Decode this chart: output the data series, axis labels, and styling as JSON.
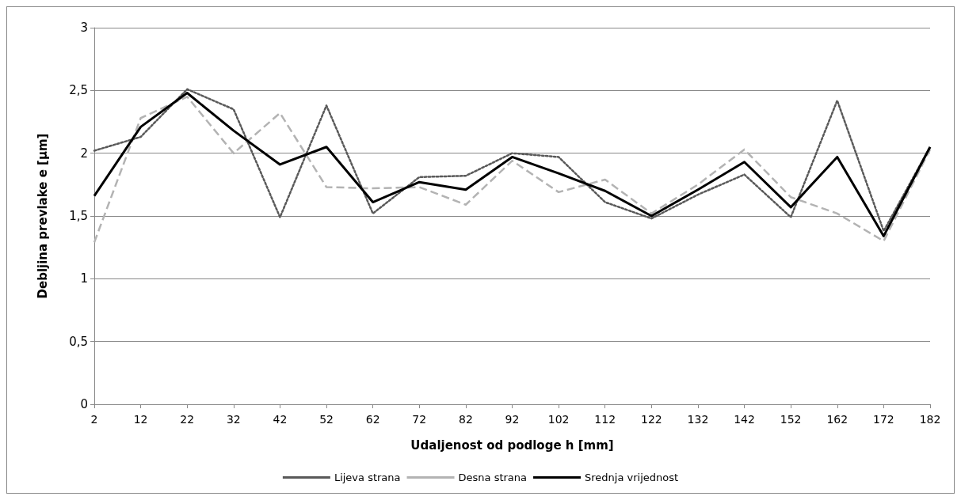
{
  "chart_data": {
    "type": "line",
    "xlabel": "Udaljenost od podloge h [mm]",
    "ylabel": "Debljina prevlake e [µm]",
    "categories": [
      "2",
      "12",
      "22",
      "32",
      "42",
      "52",
      "62",
      "72",
      "82",
      "92",
      "102",
      "112",
      "122",
      "132",
      "142",
      "152",
      "162",
      "172",
      "182"
    ],
    "series": [
      {
        "name": "Lijeva strana",
        "color": "#595959",
        "line_style": "dotted",
        "values": [
          2.02,
          2.13,
          2.51,
          2.35,
          1.49,
          2.38,
          1.52,
          1.81,
          1.82,
          2.0,
          1.97,
          1.61,
          1.48,
          1.67,
          1.83,
          1.49,
          2.42,
          1.38,
          2.05
        ]
      },
      {
        "name": "Desna strana",
        "color": "#b3b3b3",
        "line_style": "dashed",
        "values": [
          1.29,
          2.28,
          2.45,
          2.0,
          2.32,
          1.73,
          1.72,
          1.73,
          1.59,
          1.94,
          1.69,
          1.79,
          1.52,
          1.75,
          2.03,
          1.65,
          1.52,
          1.3,
          2.03
        ]
      },
      {
        "name": "Srednja vrijednost",
        "color": "#000000",
        "line_style": "solid",
        "values": [
          1.66,
          2.21,
          2.48,
          2.18,
          1.91,
          2.05,
          1.61,
          1.77,
          1.71,
          1.97,
          1.84,
          1.7,
          1.5,
          1.71,
          1.93,
          1.57,
          1.97,
          1.34,
          2.05
        ]
      }
    ],
    "ylim": [
      0,
      3
    ],
    "yticks": [
      0,
      {
        "value": 0.5,
        "label": "0,5"
      },
      1,
      {
        "value": 1.5,
        "label": "1,5"
      },
      2,
      {
        "value": 2.5,
        "label": "2,5"
      },
      3
    ],
    "grid": "y",
    "legend": "bottom",
    "marker": "none"
  }
}
